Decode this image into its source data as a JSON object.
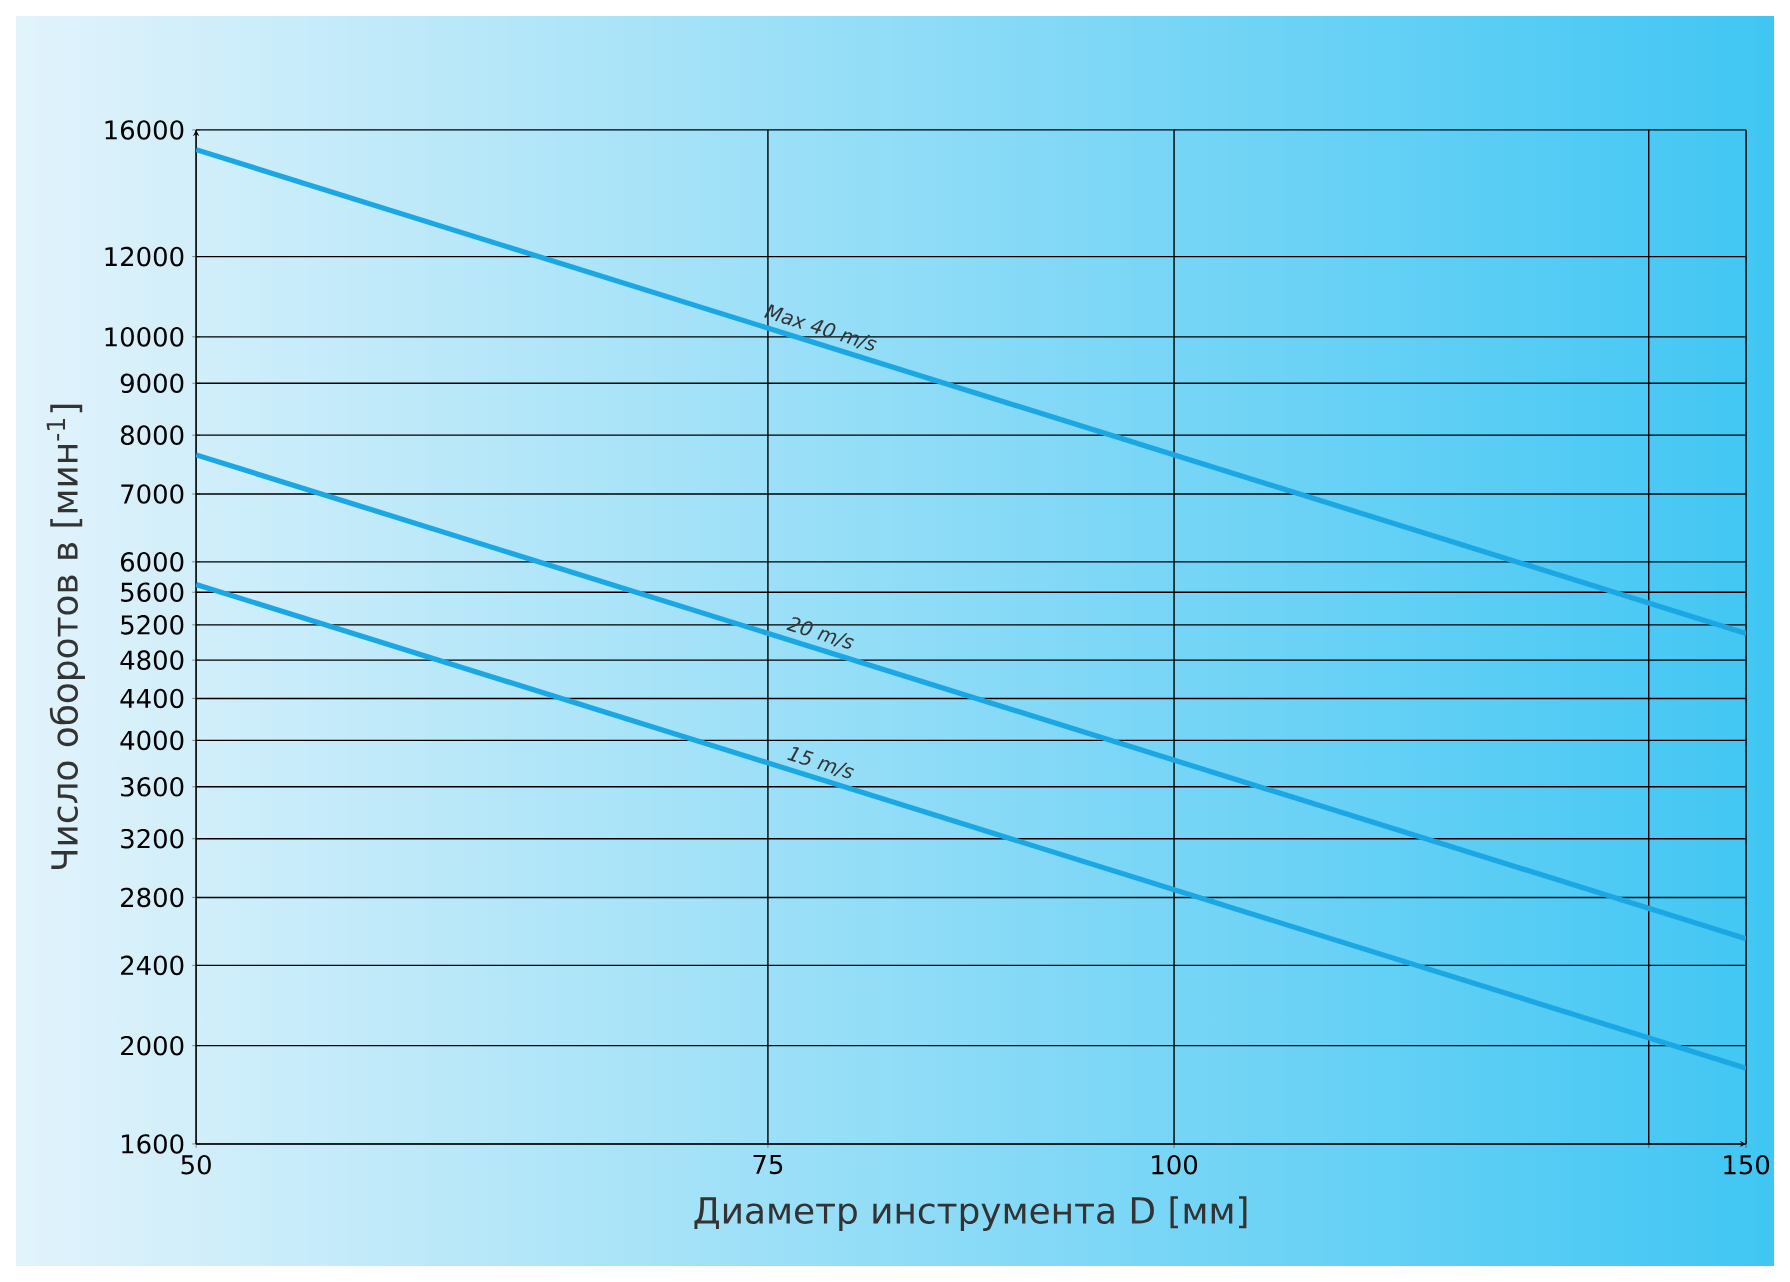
{
  "chart_data": {
    "type": "line",
    "xlabel": "Диаметр инструмента D [мм]",
    "ylabel": "Число оборотов в [мин$^{-1}$]",
    "x": [
      50,
      150
    ],
    "series": [
      {
        "name": "Max 40 m/s",
        "color": "#1aa7e4",
        "values": [
          15300,
          5100
        ]
      },
      {
        "name": "20 m/s",
        "color": "#1aa7e4",
        "values": [
          7650,
          2550
        ]
      },
      {
        "name": "15 m/s",
        "color": "#1aa7e4",
        "values": [
          5700,
          1900
        ]
      }
    ],
    "log": "xy",
    "xlim": [
      50,
      150
    ],
    "ylim": [
      1600,
      16000
    ],
    "xticks": [
      50,
      75,
      100,
      {
        "value": 140,
        "label": null
      },
      150
    ],
    "yticks": [
      1600,
      2000,
      2400,
      2800,
      3200,
      3600,
      4000,
      4400,
      4800,
      5200,
      5600,
      6000,
      7000,
      8000,
      9000,
      10000,
      12000,
      16000
    ],
    "grid": true,
    "legend": false
  }
}
